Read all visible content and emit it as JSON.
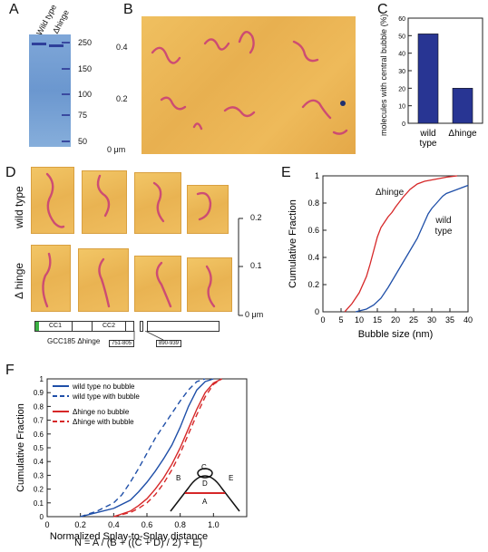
{
  "panels": {
    "A": {
      "letter": "A",
      "lanes": [
        "Wild type",
        "Δhinge"
      ],
      "markers": [
        "250",
        "150",
        "100",
        "75",
        "50"
      ]
    },
    "B": {
      "letter": "B",
      "ticks": [
        "0.4",
        "0.2",
        "0 μm"
      ]
    },
    "C": {
      "letter": "C",
      "ylabel": "molecules with central bubble (%)"
    },
    "D": {
      "letter": "D",
      "rows": [
        "wild type",
        "Δ hinge"
      ],
      "scale_ticks": [
        "0.2",
        "0.1",
        "0 μm"
      ],
      "construct_label": "GCC185 Δhinge",
      "domains": [
        "CC1",
        "CC2"
      ],
      "deletions": [
        "751-805",
        "890-939"
      ]
    },
    "E": {
      "letter": "E",
      "curve_labels": [
        "Δhinge",
        "wild type"
      ]
    },
    "F": {
      "letter": "F",
      "xlabel_line2": "N = A / (B + ((C + D) / 2) + E)",
      "diagram_labels": [
        "C",
        "B",
        "D",
        "E",
        "A"
      ]
    }
  },
  "chart_data": [
    {
      "id": "C",
      "type": "bar",
      "categories": [
        "wild type",
        "Δhinge"
      ],
      "values": [
        51,
        20
      ],
      "title": "",
      "xlabel": "",
      "ylabel": "molecules with central bubble (%)",
      "ylim": [
        0,
        60
      ],
      "yticks": [
        0,
        10,
        20,
        30,
        40,
        50,
        60
      ],
      "colors": {
        "bar": "#283593"
      }
    },
    {
      "id": "E",
      "type": "line",
      "xlabel": "Bubble size (nm)",
      "ylabel": "Cumulative Fraction",
      "xlim": [
        0,
        40
      ],
      "ylim": [
        0,
        1
      ],
      "xticks": [
        0,
        5,
        10,
        15,
        20,
        25,
        30,
        35,
        40
      ],
      "yticks": [
        0,
        0.2,
        0.4,
        0.6,
        0.8,
        1
      ],
      "series": [
        {
          "color": "#d62728",
          "x": [
            6,
            8,
            10,
            12,
            13,
            14,
            15,
            16,
            17,
            18,
            19,
            20,
            22,
            24,
            26,
            28,
            30,
            32,
            34,
            37
          ],
          "y": [
            0,
            0.06,
            0.14,
            0.26,
            0.35,
            0.45,
            0.55,
            0.62,
            0.66,
            0.7,
            0.73,
            0.77,
            0.84,
            0.9,
            0.94,
            0.96,
            0.97,
            0.98,
            0.99,
            1
          ]
        },
        {
          "color": "#1f4fa8",
          "x": [
            9,
            12,
            14,
            16,
            18,
            20,
            22,
            24,
            26,
            27,
            28,
            29,
            30,
            31,
            32,
            33,
            34,
            36,
            38,
            40
          ],
          "y": [
            0,
            0.02,
            0.05,
            0.1,
            0.18,
            0.27,
            0.36,
            0.45,
            0.54,
            0.6,
            0.66,
            0.72,
            0.76,
            0.79,
            0.82,
            0.85,
            0.87,
            0.89,
            0.91,
            0.93
          ]
        }
      ]
    },
    {
      "id": "F",
      "type": "line",
      "xlabel": "Normalized Splay-to-Splay distance",
      "ylabel": "Cumulative Fraction",
      "xlim": [
        0,
        1.2
      ],
      "ylim": [
        0,
        1
      ],
      "xticks": [
        0,
        0.2,
        0.4,
        0.6,
        0.8,
        1.0
      ],
      "xticklabels": [
        "0",
        "0.2",
        "0.4",
        "0.6",
        "0.8",
        "1.0"
      ],
      "yticks": [
        0,
        0.1,
        0.2,
        0.3,
        0.4,
        0.5,
        0.6,
        0.7,
        0.8,
        0.9,
        1
      ],
      "yticklabels": [
        "0",
        "0.1",
        "0.2",
        "0.3",
        "0.4",
        "0.5",
        "0.6",
        "0.7",
        "0.8",
        "0.9",
        "1"
      ],
      "series": [
        {
          "name": "wild type no bubble",
          "color": "#1f4fa8",
          "dash": false,
          "x": [
            0.2,
            0.3,
            0.4,
            0.5,
            0.55,
            0.6,
            0.65,
            0.7,
            0.75,
            0.8,
            0.85,
            0.9,
            0.95,
            1.0
          ],
          "y": [
            0,
            0.03,
            0.06,
            0.12,
            0.18,
            0.25,
            0.33,
            0.42,
            0.52,
            0.65,
            0.8,
            0.92,
            0.98,
            1
          ]
        },
        {
          "name": "wild type with bubble",
          "color": "#1f4fa8",
          "dash": true,
          "x": [
            0.2,
            0.3,
            0.4,
            0.45,
            0.5,
            0.55,
            0.6,
            0.65,
            0.7,
            0.75,
            0.8,
            0.85,
            0.9,
            0.95
          ],
          "y": [
            0,
            0.04,
            0.1,
            0.16,
            0.25,
            0.35,
            0.46,
            0.57,
            0.66,
            0.75,
            0.84,
            0.92,
            0.98,
            1
          ]
        },
        {
          "name": "Δhinge no bubble",
          "color": "#d62728",
          "dash": false,
          "x": [
            0.4,
            0.5,
            0.55,
            0.6,
            0.65,
            0.7,
            0.75,
            0.8,
            0.85,
            0.9,
            0.95,
            1.0,
            1.05
          ],
          "y": [
            0,
            0.04,
            0.08,
            0.13,
            0.2,
            0.28,
            0.38,
            0.5,
            0.64,
            0.78,
            0.9,
            0.97,
            1
          ]
        },
        {
          "name": "Δhinge with bubble",
          "color": "#d62728",
          "dash": true,
          "x": [
            0.4,
            0.5,
            0.55,
            0.6,
            0.65,
            0.7,
            0.75,
            0.8,
            0.85,
            0.9,
            0.95,
            1.0,
            1.05
          ],
          "y": [
            0,
            0.03,
            0.06,
            0.1,
            0.16,
            0.24,
            0.34,
            0.46,
            0.6,
            0.74,
            0.87,
            0.96,
            1
          ]
        }
      ]
    }
  ]
}
